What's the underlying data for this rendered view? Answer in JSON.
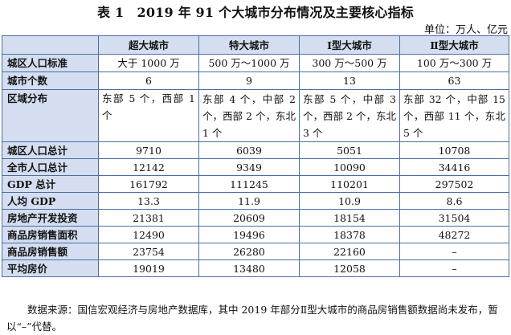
{
  "title": "表 1　2019 年 91 个大城市分布情况及主要核心指标",
  "unit": "单位：万人、亿元",
  "table": {
    "corner": "",
    "headers": [
      "超大城市",
      "特大城市",
      "Ⅰ型大城市",
      "Ⅱ型大城市"
    ],
    "rows": [
      {
        "label": "城区人口标准",
        "cells": [
          "大于 1000 万",
          "500 万～1000 万",
          "300 万～500 万",
          "100 万～300 万"
        ]
      },
      {
        "label": "城市个数",
        "cells": [
          "6",
          "9",
          "13",
          "63"
        ]
      },
      {
        "label": "区域分布",
        "cells": [
          "东部 5 个，西部 1 个",
          "东部 4 个，中部 2 个，西部 2 个，东北 1 个",
          "东部 5 个，中部 3 个，西部 2 个，东北 3 个",
          "东部 32 个，中部 15 个，西部 11 个，东北 5 个"
        ]
      },
      {
        "label": "城区人口总计",
        "cells": [
          "9710",
          "6039",
          "5051",
          "10708"
        ]
      },
      {
        "label": "全市人口总计",
        "cells": [
          "12142",
          "9349",
          "10090",
          "34416"
        ]
      },
      {
        "label": "GDP 总计",
        "cells": [
          "161792",
          "111245",
          "110201",
          "297502"
        ]
      },
      {
        "label": "人均 GDP",
        "cells": [
          "13.3",
          "11.9",
          "10.9",
          "8.6"
        ]
      },
      {
        "label": "房地产开发投资",
        "cells": [
          "21381",
          "20609",
          "18154",
          "31504"
        ]
      },
      {
        "label": "商品房销售面积",
        "cells": [
          "12490",
          "19496",
          "18378",
          "48272"
        ]
      },
      {
        "label": "商品房销售额",
        "cells": [
          "23754",
          "26280",
          "22160",
          "–"
        ]
      },
      {
        "label": "平均房价",
        "cells": [
          "19019",
          "13480",
          "12058",
          "–"
        ]
      }
    ]
  },
  "source": "数据来源：国信宏观经济与房地产数据库，其中 2019 年部分Ⅱ型大城市的商品房销售额数据尚未发布，暂以“–”代替。"
}
